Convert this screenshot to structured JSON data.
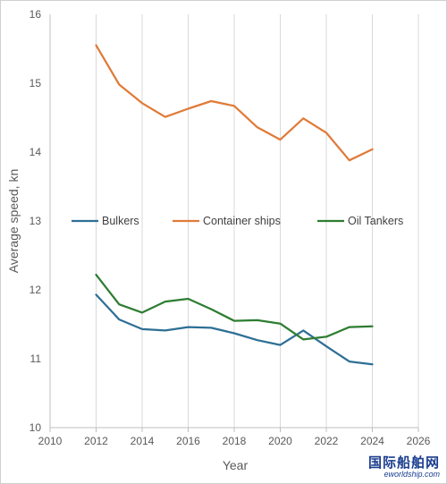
{
  "chart_data": {
    "type": "line",
    "title": "",
    "xlabel": "Year",
    "ylabel": "Average speed, kn",
    "xlim": [
      2010,
      2026
    ],
    "ylim": [
      10,
      16
    ],
    "x_ticks": [
      2010,
      2012,
      2014,
      2016,
      2018,
      2020,
      2022,
      2024,
      2026
    ],
    "y_ticks": [
      10,
      11,
      12,
      13,
      14,
      15,
      16
    ],
    "grid": "vertical",
    "legend_position": "center",
    "x": [
      2012,
      2013,
      2014,
      2015,
      2016,
      2017,
      2018,
      2019,
      2020,
      2021,
      2022,
      2023,
      2024
    ],
    "series": [
      {
        "name": "Bulkers",
        "color": "#2e6f95",
        "values": [
          11.93,
          11.57,
          11.43,
          11.41,
          11.46,
          11.45,
          11.37,
          11.27,
          11.2,
          11.41,
          11.18,
          10.96,
          10.92
        ]
      },
      {
        "name": "Container ships",
        "color": "#e07b39",
        "values": [
          15.55,
          14.98,
          14.71,
          14.51,
          14.63,
          14.74,
          14.67,
          14.36,
          14.18,
          14.49,
          14.28,
          13.88,
          14.04
        ]
      },
      {
        "name": "Oil Tankers",
        "color": "#2e7d32",
        "values": [
          12.22,
          11.79,
          11.67,
          11.83,
          11.87,
          11.72,
          11.55,
          11.56,
          11.51,
          11.28,
          11.32,
          11.46,
          11.47
        ]
      }
    ]
  },
  "watermark": {
    "cn": "国际船舶网",
    "en": "eworldship.com"
  }
}
